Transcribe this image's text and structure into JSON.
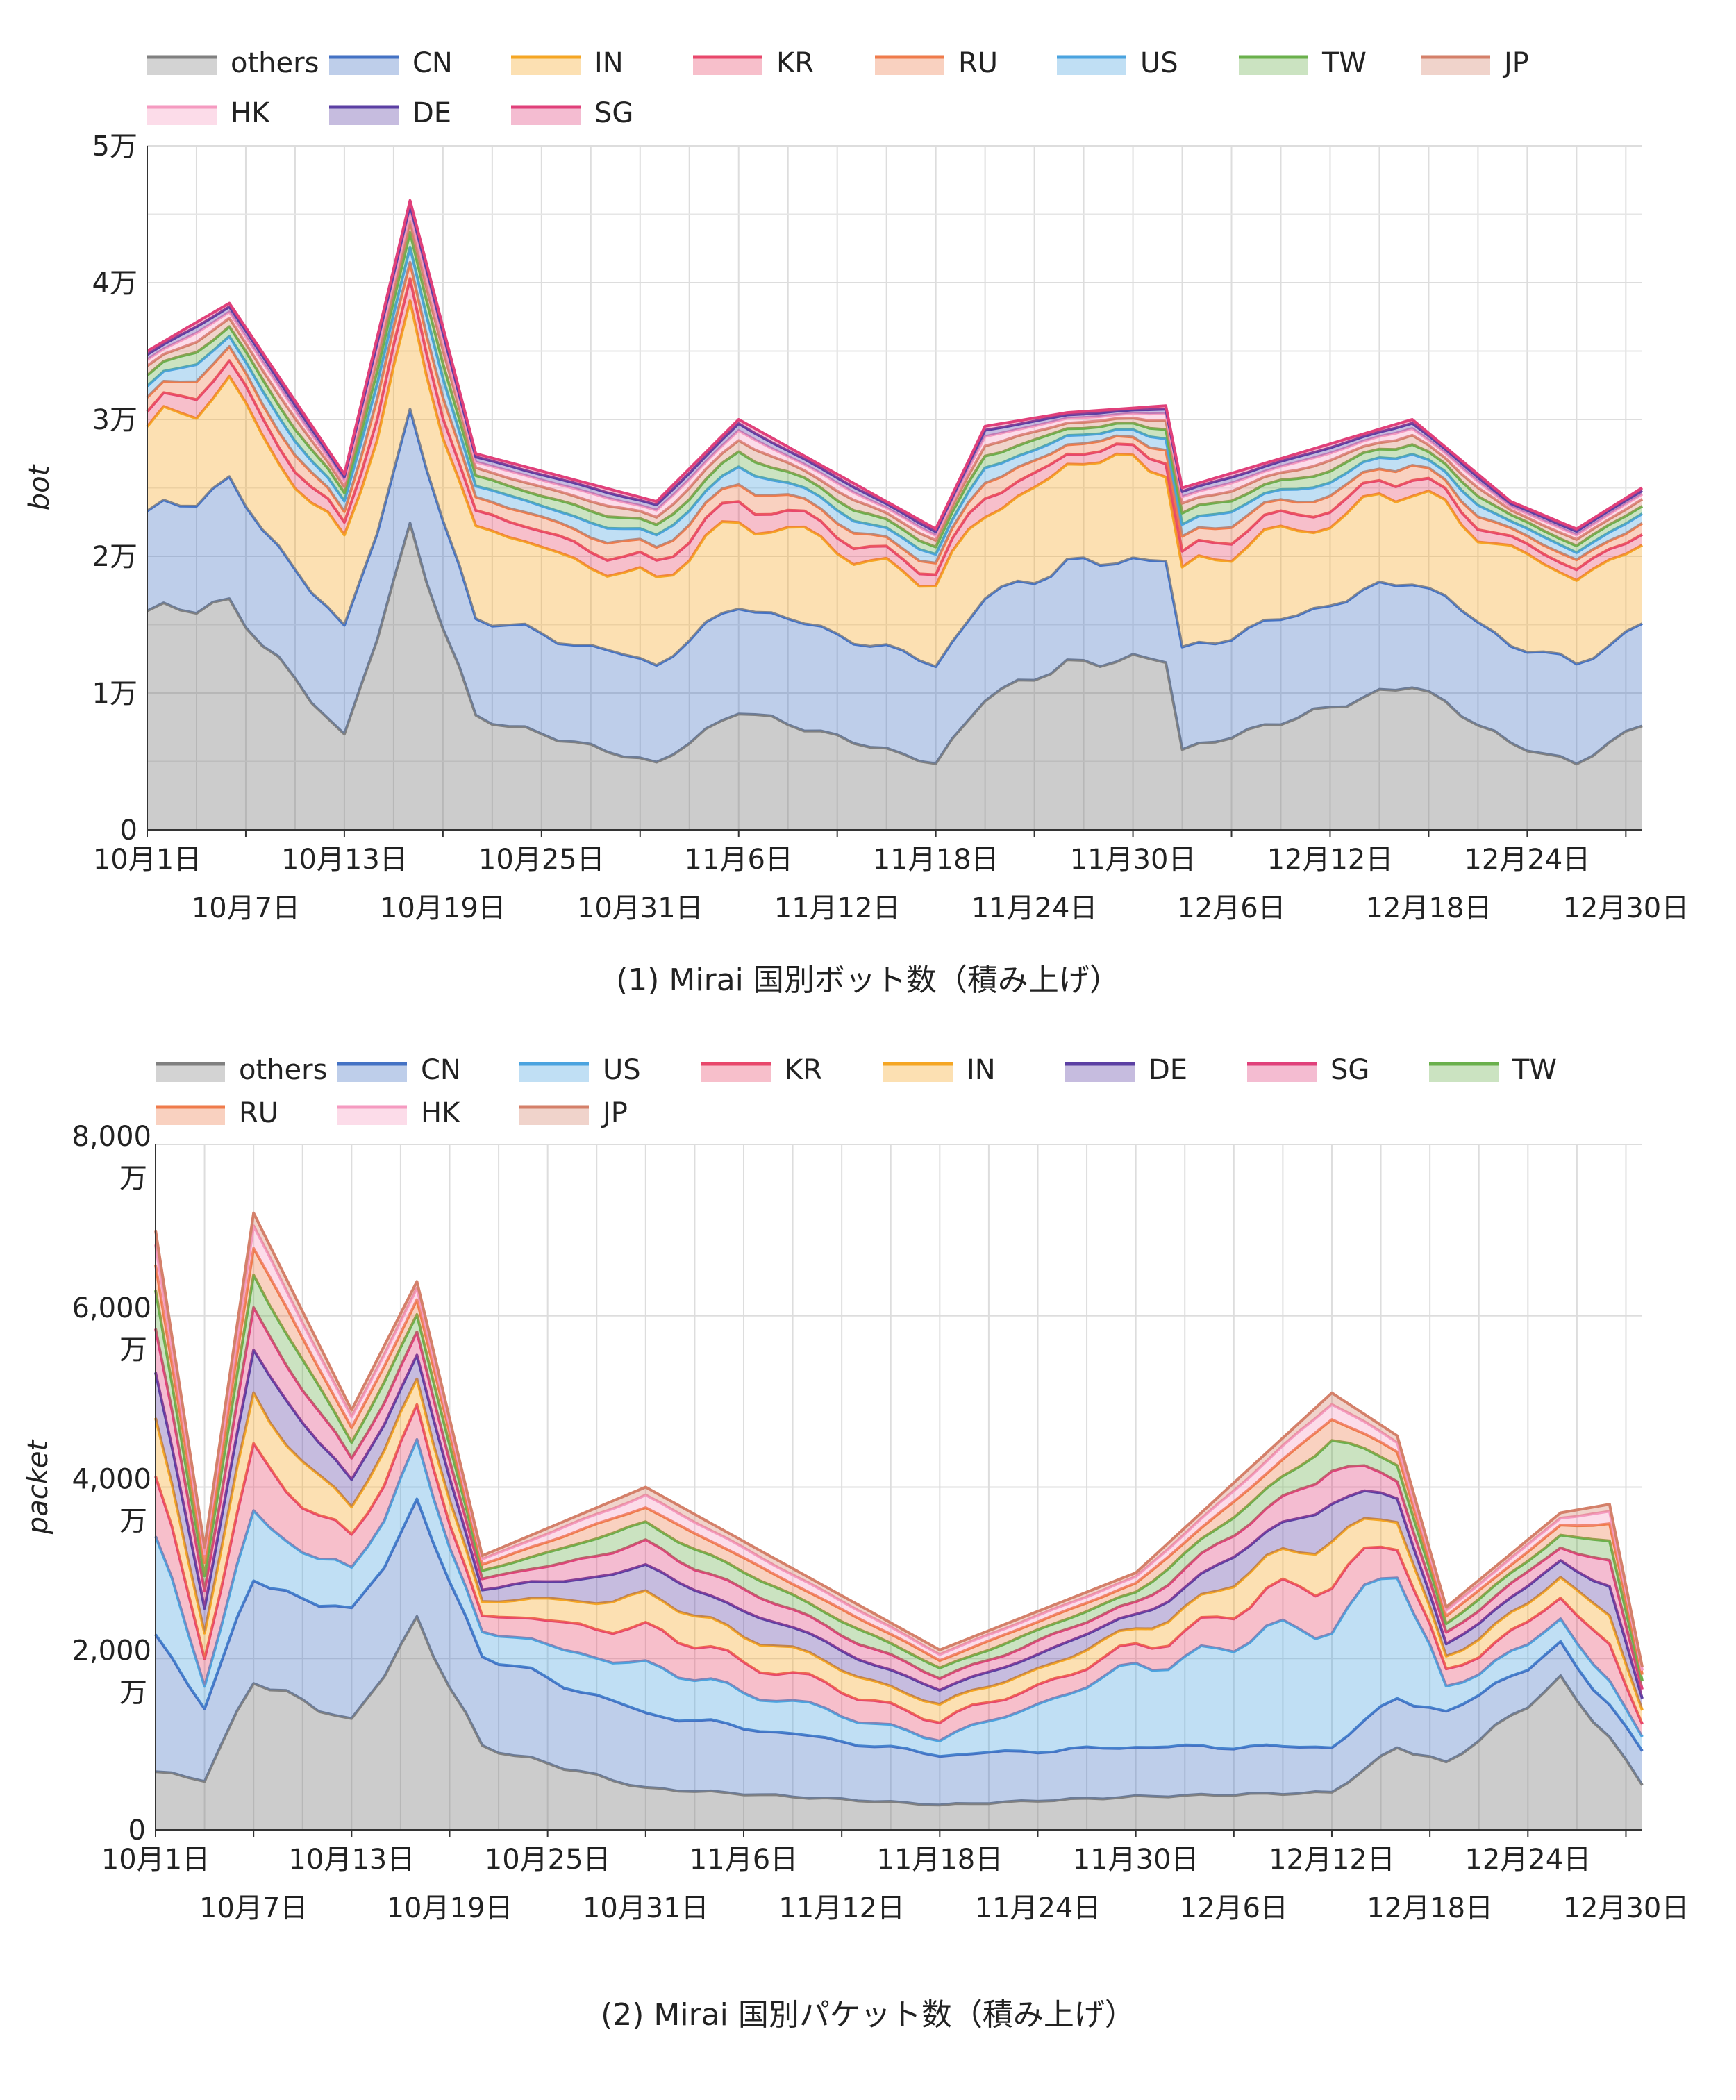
{
  "chart_data": [
    {
      "type": "area",
      "stacked": true,
      "caption": "(1) Mirai 国別ボット数（積み上げ）",
      "ylabel": "bot",
      "ylim": [
        0,
        50000
      ],
      "yticks": [
        {
          "value": 0,
          "label": "0"
        },
        {
          "value": 10000,
          "label": "1万"
        },
        {
          "value": 20000,
          "label": "2万"
        },
        {
          "value": 30000,
          "label": "3万"
        },
        {
          "value": 40000,
          "label": "4万"
        },
        {
          "value": 50000,
          "label": "5万"
        }
      ],
      "xticks": [
        {
          "day": 0,
          "label": "10月1日",
          "row": 0
        },
        {
          "day": 6,
          "label": "10月7日",
          "row": 1
        },
        {
          "day": 12,
          "label": "10月13日",
          "row": 0
        },
        {
          "day": 18,
          "label": "10月19日",
          "row": 1
        },
        {
          "day": 24,
          "label": "10月25日",
          "row": 0
        },
        {
          "day": 30,
          "label": "10月31日",
          "row": 1
        },
        {
          "day": 36,
          "label": "11月6日",
          "row": 0
        },
        {
          "day": 42,
          "label": "11月12日",
          "row": 1
        },
        {
          "day": 48,
          "label": "11月18日",
          "row": 0
        },
        {
          "day": 54,
          "label": "11月24日",
          "row": 1
        },
        {
          "day": 60,
          "label": "11月30日",
          "row": 0
        },
        {
          "day": 66,
          "label": "12月6日",
          "row": 1
        },
        {
          "day": 72,
          "label": "12月12日",
          "row": 0
        },
        {
          "day": 78,
          "label": "12月18日",
          "row": 1
        },
        {
          "day": 84,
          "label": "12月24日",
          "row": 0
        },
        {
          "day": 90,
          "label": "12月30日",
          "row": 1
        }
      ],
      "legend": [
        "others",
        "CN",
        "IN",
        "KR",
        "RU",
        "US",
        "TW",
        "JP",
        "HK",
        "DE",
        "SG"
      ],
      "series_order_bottom_to_top": [
        "others",
        "CN",
        "IN",
        "KR",
        "RU",
        "US",
        "TW",
        "JP",
        "HK",
        "DE",
        "SG"
      ],
      "key_points": [
        {
          "day": 0,
          "others": 16500,
          "CN": 7300,
          "IN": 7000,
          "top": 35000
        },
        {
          "day": 5,
          "others": 17000,
          "CN": 9000,
          "IN": 7500,
          "top": 38500
        },
        {
          "day": 12,
          "others": 7000,
          "CN": 8000,
          "IN": 7000,
          "top": 26000
        },
        {
          "day": 16,
          "others": 22500,
          "CN": 8500,
          "IN": 8000,
          "top": 46000
        },
        {
          "day": 20,
          "others": 8500,
          "CN": 7500,
          "IN": 7000,
          "top": 27500
        },
        {
          "day": 31,
          "others": 5000,
          "CN": 7500,
          "IN": 6500,
          "top": 24000
        },
        {
          "day": 36,
          "others": 9000,
          "CN": 8000,
          "IN": 7000,
          "top": 30000
        },
        {
          "day": 48,
          "others": 5000,
          "CN": 7500,
          "IN": 6500,
          "top": 22000
        },
        {
          "day": 51,
          "others": 10000,
          "CN": 7500,
          "IN": 6500,
          "top": 29500
        },
        {
          "day": 56,
          "others": 12500,
          "CN": 7500,
          "IN": 8000,
          "top": 30500
        },
        {
          "day": 62,
          "others": 13000,
          "CN": 7500,
          "IN": 7500,
          "top": 31000
        },
        {
          "day": 63,
          "others": 6000,
          "CN": 7500,
          "IN": 6500,
          "top": 25000
        },
        {
          "day": 77,
          "others": 11000,
          "CN": 8000,
          "IN": 7000,
          "top": 30000
        },
        {
          "day": 83,
          "others": 6500,
          "CN": 7500,
          "IN": 7500,
          "top": 24000
        },
        {
          "day": 87,
          "others": 5000,
          "CN": 7500,
          "IN": 6500,
          "top": 22000
        },
        {
          "day": 91,
          "others": 8000,
          "CN": 7500,
          "IN": 7000,
          "top": 25000
        }
      ]
    },
    {
      "type": "area",
      "stacked": true,
      "caption": "(2) Mirai 国別パケット数（積み上げ）",
      "ylabel": "packet",
      "ylim": [
        0,
        80000000
      ],
      "yticks": [
        {
          "value": 0,
          "label": "0"
        },
        {
          "value": 20000000,
          "label": "2,000 万"
        },
        {
          "value": 40000000,
          "label": "4,000 万"
        },
        {
          "value": 60000000,
          "label": "6,000 万"
        },
        {
          "value": 80000000,
          "label": "8,000 万"
        }
      ],
      "xticks": [
        {
          "day": 0,
          "label": "10月1日",
          "row": 0
        },
        {
          "day": 6,
          "label": "10月7日",
          "row": 1
        },
        {
          "day": 12,
          "label": "10月13日",
          "row": 0
        },
        {
          "day": 18,
          "label": "10月19日",
          "row": 1
        },
        {
          "day": 24,
          "label": "10月25日",
          "row": 0
        },
        {
          "day": 30,
          "label": "10月31日",
          "row": 1
        },
        {
          "day": 36,
          "label": "11月6日",
          "row": 0
        },
        {
          "day": 42,
          "label": "11月12日",
          "row": 1
        },
        {
          "day": 48,
          "label": "11月18日",
          "row": 0
        },
        {
          "day": 54,
          "label": "11月24日",
          "row": 1
        },
        {
          "day": 60,
          "label": "11月30日",
          "row": 0
        },
        {
          "day": 66,
          "label": "12月6日",
          "row": 1
        },
        {
          "day": 72,
          "label": "12月12日",
          "row": 0
        },
        {
          "day": 78,
          "label": "12月18日",
          "row": 1
        },
        {
          "day": 84,
          "label": "12月24日",
          "row": 0
        },
        {
          "day": 90,
          "label": "12月30日",
          "row": 1
        }
      ],
      "legend": [
        "others",
        "CN",
        "US",
        "KR",
        "IN",
        "DE",
        "SG",
        "TW",
        "RU",
        "HK",
        "JP"
      ],
      "series_order_bottom_to_top": [
        "others",
        "CN",
        "US",
        "KR",
        "IN",
        "DE",
        "SG",
        "TW",
        "RU",
        "HK",
        "JP"
      ],
      "key_points": [
        {
          "day": 0,
          "others": 7000000,
          "CN": 16000000,
          "US": 13000000,
          "top": 70000000
        },
        {
          "day": 3,
          "others": 6000000,
          "CN": 9000000,
          "US": 3000000,
          "top": 33000000
        },
        {
          "day": 6,
          "others": 18000000,
          "CN": 12000000,
          "US": 8000000,
          "top": 72000000
        },
        {
          "day": 12,
          "others": 13000000,
          "CN": 13000000,
          "US": 5000000,
          "top": 49000000
        },
        {
          "day": 16,
          "others": 25000000,
          "CN": 14000000,
          "US": 7000000,
          "top": 64000000
        },
        {
          "day": 20,
          "others": 10000000,
          "CN": 11000000,
          "US": 3000000,
          "top": 32000000
        },
        {
          "day": 30,
          "others": 5000000,
          "CN": 9000000,
          "US": 6000000,
          "top": 40000000
        },
        {
          "day": 48,
          "others": 3000000,
          "CN": 6000000,
          "US": 2000000,
          "top": 21000000
        },
        {
          "day": 60,
          "others": 4000000,
          "CN": 6000000,
          "US": 10000000,
          "top": 30000000
        },
        {
          "day": 72,
          "others": 4500000,
          "CN": 5500000,
          "US": 16000000,
          "top": 51000000
        },
        {
          "day": 76,
          "others": 10000000,
          "CN": 6000000,
          "US": 16000000,
          "top": 46000000
        },
        {
          "day": 79,
          "others": 8000000,
          "CN": 6000000,
          "US": 3000000,
          "top": 26000000
        },
        {
          "day": 86,
          "others": 18000000,
          "CN": 4000000,
          "US": 3000000,
          "top": 37000000
        },
        {
          "day": 89,
          "others": 11000000,
          "CN": 4000000,
          "US": 3000000,
          "top": 38000000
        },
        {
          "day": 91,
          "others": 5500000,
          "CN": 4000000,
          "US": 2000000,
          "top": 19000000
        }
      ]
    }
  ],
  "colors": {
    "others": "#808080",
    "CN": "#4472c4",
    "IN": "#f5a623",
    "KR": "#e8476b",
    "RU": "#ef7b4b",
    "US": "#4aa3df",
    "TW": "#6ab04c",
    "JP": "#d4806a",
    "HK": "#f59ac0",
    "DE": "#5b3fa3",
    "SG": "#e0407a"
  }
}
